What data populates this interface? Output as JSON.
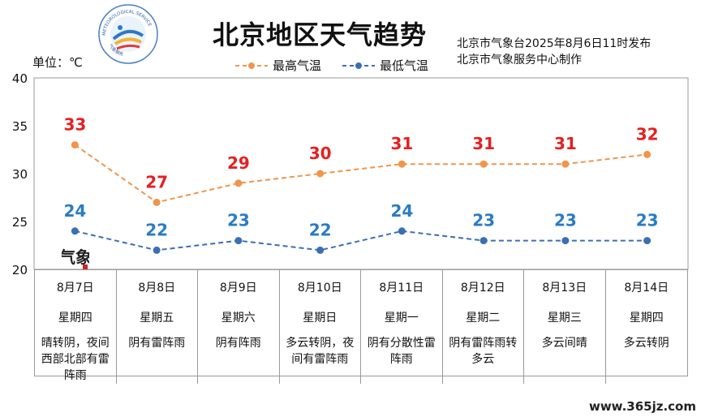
{
  "header": {
    "title": "北京地区天气趋势",
    "publish_line1": "北京市气象台2025年8月6日11时发布",
    "publish_line2": "北京市气象服务中心制作"
  },
  "unit_label": "单位：℃",
  "logo": {
    "ring_text_top": "METEOROLOGICAL SERVICE",
    "ring_text_bottom": "气象服务",
    "ring_text_left": "BEIJING"
  },
  "watermark": {
    "seal_text": "气象",
    "url": "www.365jz.com"
  },
  "colors": {
    "high_line": "#f0954a",
    "high_label": "#e62020",
    "low_line": "#3a6fb5",
    "low_label": "#2a7cc4"
  },
  "chart_data": {
    "type": "line",
    "ylim": [
      20,
      40
    ],
    "yticks": [
      "20",
      "25",
      "30",
      "35",
      "40"
    ],
    "categories": [
      "8月7日",
      "8月8日",
      "8月9日",
      "8月10日",
      "8月11日",
      "8月12日",
      "8月13日",
      "8月14日"
    ],
    "series": [
      {
        "name": "最高气温",
        "values": [
          33,
          27,
          29,
          30,
          31,
          31,
          31,
          32
        ]
      },
      {
        "name": "最低气温",
        "values": [
          24,
          22,
          23,
          22,
          24,
          23,
          23,
          23
        ]
      }
    ]
  },
  "table": {
    "weekdays": [
      "星期四",
      "星期五",
      "星期六",
      "星期日",
      "星期一",
      "星期二",
      "星期三",
      "星期四"
    ],
    "weather": [
      "晴转阴，夜间西部北部有雷阵雨",
      "阴有雷阵雨",
      "阴有阵雨",
      "多云转阴，夜间有雷阵雨",
      "阴有分散性雷阵雨",
      "阴有雷阵雨转多云",
      "多云间晴",
      "多云转阴"
    ]
  }
}
